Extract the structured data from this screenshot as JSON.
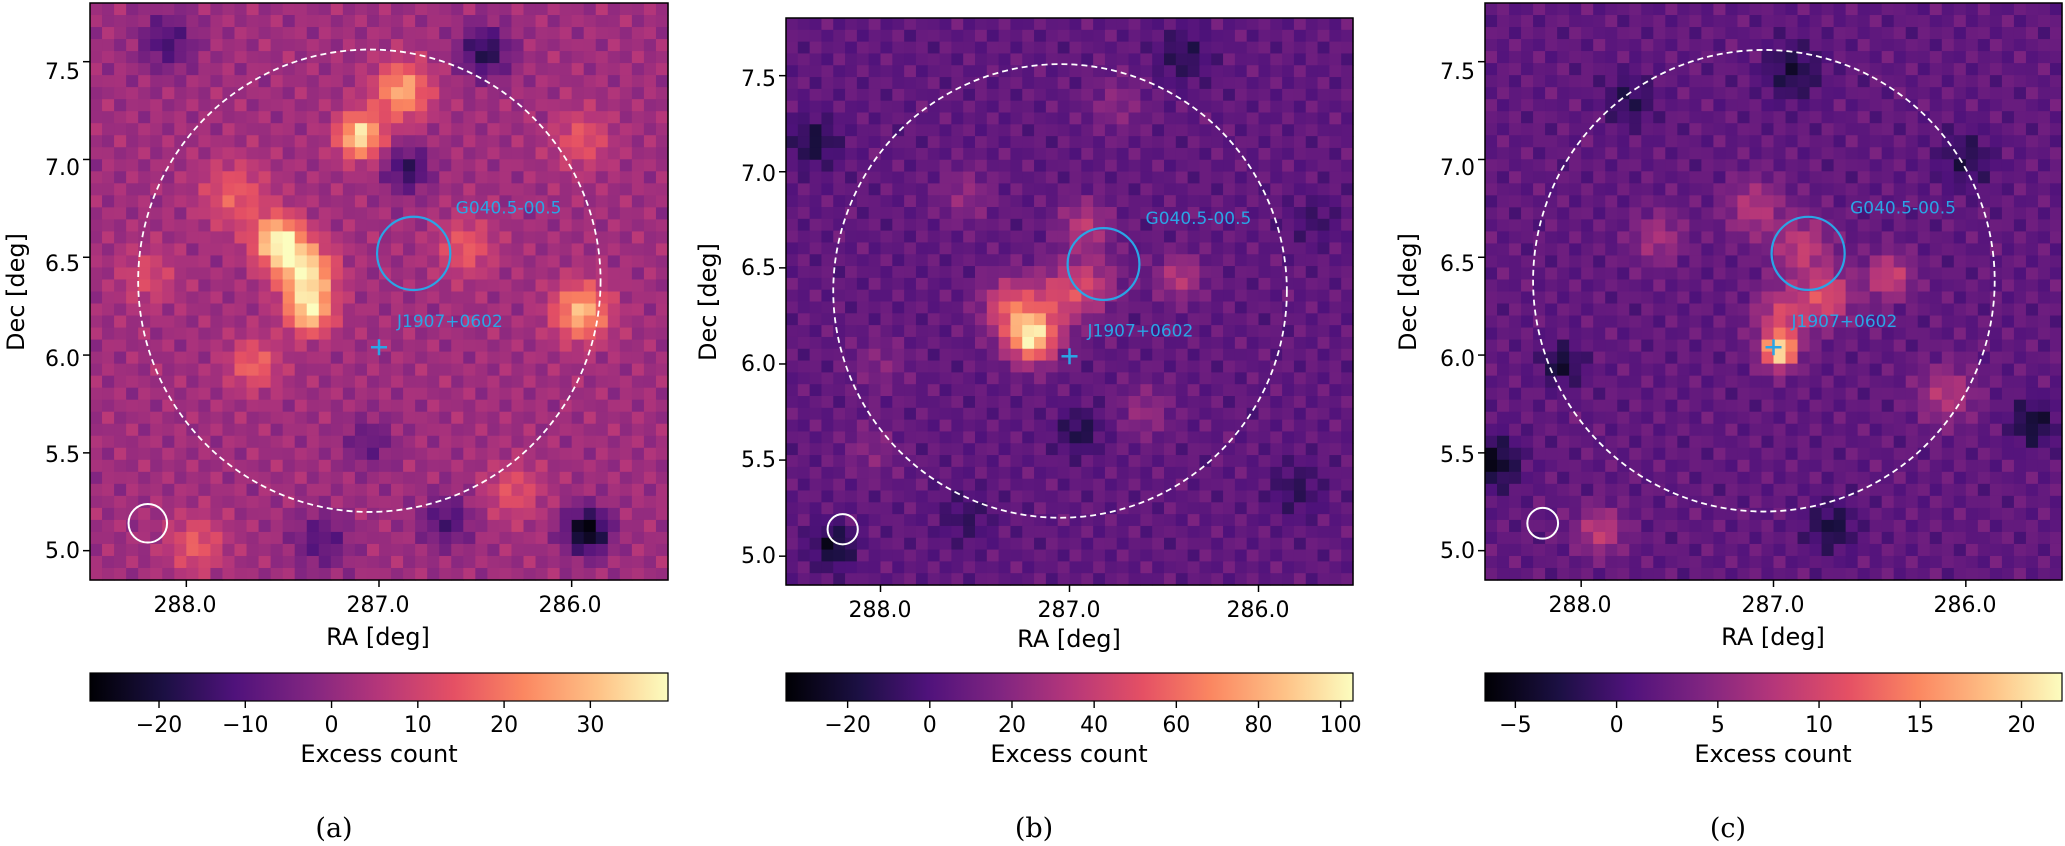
{
  "figure": {
    "panels": [
      {
        "id": "a",
        "caption": "(a)",
        "xlabel": "RA [deg]",
        "ylabel": "Dec [deg]",
        "xticks": [
          "288.0",
          "287.0",
          "286.0"
        ],
        "yticks": [
          "5.0",
          "5.5",
          "6.0",
          "6.5",
          "7.0",
          "7.5"
        ],
        "colorbar_label": "Excess count",
        "colorbar_ticks": [
          "−20",
          "−10",
          "0",
          "10",
          "20",
          "30"
        ],
        "source_labels": {
          "snr": "G040.5-00.5",
          "pulsar": "J1907+0602"
        }
      },
      {
        "id": "b",
        "caption": "(b)",
        "xlabel": "RA [deg]",
        "ylabel": "Dec [deg]",
        "xticks": [
          "288.0",
          "287.0",
          "286.0"
        ],
        "yticks": [
          "5.0",
          "5.5",
          "6.0",
          "6.5",
          "7.0",
          "7.5"
        ],
        "colorbar_label": "Excess count",
        "colorbar_ticks": [
          "−20",
          "0",
          "20",
          "40",
          "60",
          "80",
          "100"
        ],
        "source_labels": {
          "snr": "G040.5-00.5",
          "pulsar": "J1907+0602"
        }
      },
      {
        "id": "c",
        "caption": "(c)",
        "xlabel": "RA [deg]",
        "ylabel": "Dec [deg]",
        "xticks": [
          "288.0",
          "287.0",
          "286.0"
        ],
        "yticks": [
          "5.0",
          "5.5",
          "6.0",
          "6.5",
          "7.0",
          "7.5"
        ],
        "colorbar_label": "Excess count",
        "colorbar_ticks": [
          "−5",
          "0",
          "5",
          "10",
          "15",
          "20"
        ],
        "source_labels": {
          "snr": "G040.5-00.5",
          "pulsar": "J1907+0602"
        }
      }
    ]
  },
  "chart_data": [
    {
      "type": "heatmap",
      "colormap": "magma",
      "xlabel": "RA [deg]",
      "ylabel": "Dec [deg]",
      "xlim": [
        288.5,
        285.5
      ],
      "ylim": [
        4.85,
        7.8
      ],
      "xticks": [
        288.0,
        287.0,
        286.0
      ],
      "yticks": [
        5.0,
        5.5,
        6.0,
        6.5,
        7.0,
        7.5
      ],
      "colorbar": {
        "label": "Excess count",
        "min": -28,
        "max": 39,
        "ticks": [
          -20,
          -10,
          0,
          10,
          20,
          30
        ]
      },
      "background_level": 2,
      "blobs": [
        {
          "ra": 287.52,
          "dec": 6.58,
          "sigma": 0.09,
          "amp": 36
        },
        {
          "ra": 287.38,
          "dec": 6.42,
          "sigma": 0.1,
          "amp": 34
        },
        {
          "ra": 287.36,
          "dec": 6.22,
          "sigma": 0.08,
          "amp": 32
        },
        {
          "ra": 287.1,
          "dec": 7.12,
          "sigma": 0.08,
          "amp": 34
        },
        {
          "ra": 286.88,
          "dec": 7.35,
          "sigma": 0.1,
          "amp": 26
        },
        {
          "ra": 285.95,
          "dec": 6.22,
          "sigma": 0.1,
          "amp": 28
        },
        {
          "ra": 287.75,
          "dec": 6.82,
          "sigma": 0.12,
          "amp": 14
        },
        {
          "ra": 287.65,
          "dec": 5.95,
          "sigma": 0.09,
          "amp": 16
        },
        {
          "ra": 287.95,
          "dec": 5.03,
          "sigma": 0.1,
          "amp": 14
        },
        {
          "ra": 286.55,
          "dec": 6.55,
          "sigma": 0.1,
          "amp": 14
        },
        {
          "ra": 286.3,
          "dec": 5.3,
          "sigma": 0.1,
          "amp": 12
        },
        {
          "ra": 285.95,
          "dec": 7.1,
          "sigma": 0.1,
          "amp": 13
        },
        {
          "ra": 288.2,
          "dec": 6.4,
          "sigma": 0.1,
          "amp": 10
        },
        {
          "ra": 286.45,
          "dec": 7.55,
          "sigma": 0.09,
          "amp": -20
        },
        {
          "ra": 285.92,
          "dec": 5.1,
          "sigma": 0.08,
          "amp": -30
        },
        {
          "ra": 286.85,
          "dec": 6.95,
          "sigma": 0.08,
          "amp": -18
        },
        {
          "ra": 286.65,
          "dec": 5.15,
          "sigma": 0.09,
          "amp": -14
        },
        {
          "ra": 287.3,
          "dec": 5.05,
          "sigma": 0.1,
          "amp": -12
        },
        {
          "ra": 288.1,
          "dec": 7.6,
          "sigma": 0.1,
          "amp": -14
        },
        {
          "ra": 287.05,
          "dec": 5.55,
          "sigma": 0.09,
          "amp": -10
        }
      ],
      "roi_circle": {
        "ra": 287.05,
        "dec": 6.38,
        "radius_deg": 1.2,
        "style": "dashed",
        "color": "#ffffff"
      },
      "sources": [
        {
          "label": "G040.5-00.5",
          "marker": "circle",
          "ra": 286.82,
          "dec": 6.52,
          "radius_deg": 0.19,
          "color": "#2aa5e6"
        },
        {
          "label": "J1907+0602",
          "marker": "plus",
          "ra": 287.0,
          "dec": 6.04,
          "color": "#2aa5e6"
        }
      ],
      "psf_circle": {
        "ra": 288.2,
        "dec": 5.14,
        "radius_deg": 0.1,
        "color": "#ffffff"
      }
    },
    {
      "type": "heatmap",
      "colormap": "magma",
      "xlabel": "RA [deg]",
      "ylabel": "Dec [deg]",
      "xlim": [
        288.5,
        285.5
      ],
      "ylim": [
        4.85,
        7.8
      ],
      "xticks": [
        288.0,
        287.0,
        286.0
      ],
      "yticks": [
        5.0,
        5.5,
        6.0,
        6.5,
        7.0,
        7.5
      ],
      "colorbar": {
        "label": "Excess count",
        "min": -35,
        "max": 103,
        "ticks": [
          -20,
          0,
          20,
          40,
          60,
          80,
          100
        ]
      },
      "background_level": 6,
      "blobs": [
        {
          "ra": 287.2,
          "dec": 6.14,
          "sigma": 0.09,
          "amp": 90
        },
        {
          "ra": 287.32,
          "dec": 6.3,
          "sigma": 0.1,
          "amp": 45
        },
        {
          "ra": 287.05,
          "dec": 6.35,
          "sigma": 0.11,
          "amp": 35
        },
        {
          "ra": 286.92,
          "dec": 6.72,
          "sigma": 0.09,
          "amp": 30
        },
        {
          "ra": 286.88,
          "dec": 6.42,
          "sigma": 0.1,
          "amp": 26
        },
        {
          "ra": 286.42,
          "dec": 6.45,
          "sigma": 0.08,
          "amp": 30
        },
        {
          "ra": 287.55,
          "dec": 6.88,
          "sigma": 0.1,
          "amp": 16
        },
        {
          "ra": 286.6,
          "dec": 5.75,
          "sigma": 0.09,
          "amp": 18
        },
        {
          "ra": 288.05,
          "dec": 5.55,
          "sigma": 0.1,
          "amp": 12
        },
        {
          "ra": 286.75,
          "dec": 7.35,
          "sigma": 0.1,
          "amp": 14
        },
        {
          "ra": 288.0,
          "dec": 6.0,
          "sigma": 0.1,
          "amp": 12
        },
        {
          "ra": 288.35,
          "dec": 7.15,
          "sigma": 0.09,
          "amp": -24
        },
        {
          "ra": 288.25,
          "dec": 5.05,
          "sigma": 0.08,
          "amp": -30
        },
        {
          "ra": 286.95,
          "dec": 5.65,
          "sigma": 0.08,
          "amp": -22
        },
        {
          "ra": 286.4,
          "dec": 7.6,
          "sigma": 0.1,
          "amp": -18
        },
        {
          "ra": 287.55,
          "dec": 5.2,
          "sigma": 0.1,
          "amp": -14
        },
        {
          "ra": 285.8,
          "dec": 5.35,
          "sigma": 0.1,
          "amp": -16
        },
        {
          "ra": 285.7,
          "dec": 6.75,
          "sigma": 0.09,
          "amp": -12
        }
      ],
      "roi_circle": {
        "ra": 287.05,
        "dec": 6.38,
        "radius_deg": 1.2,
        "style": "dashed",
        "color": "#ffffff"
      },
      "sources": [
        {
          "label": "G040.5-00.5",
          "marker": "circle",
          "ra": 286.82,
          "dec": 6.52,
          "radius_deg": 0.19,
          "color": "#2aa5e6"
        },
        {
          "label": "J1907+0602",
          "marker": "plus",
          "ra": 287.0,
          "dec": 6.04,
          "color": "#2aa5e6"
        }
      ],
      "psf_circle": {
        "ra": 288.2,
        "dec": 5.14,
        "radius_deg": 0.08,
        "color": "#ffffff"
      }
    },
    {
      "type": "heatmap",
      "colormap": "magma",
      "xlabel": "RA [deg]",
      "ylabel": "Dec [deg]",
      "xlim": [
        288.5,
        285.5
      ],
      "ylim": [
        4.85,
        7.8
      ],
      "xticks": [
        288.0,
        287.0,
        286.0
      ],
      "yticks": [
        5.0,
        5.5,
        6.0,
        6.5,
        7.0,
        7.5
      ],
      "colorbar": {
        "label": "Excess count",
        "min": -6.5,
        "max": 22,
        "ticks": [
          -5,
          0,
          5,
          10,
          15,
          20
        ]
      },
      "background_level": 2,
      "blobs": [
        {
          "ra": 286.97,
          "dec": 6.02,
          "sigma": 0.06,
          "amp": 19
        },
        {
          "ra": 286.95,
          "dec": 6.2,
          "sigma": 0.1,
          "amp": 8
        },
        {
          "ra": 286.72,
          "dec": 6.3,
          "sigma": 0.09,
          "amp": 9
        },
        {
          "ra": 286.85,
          "dec": 6.55,
          "sigma": 0.1,
          "amp": 7
        },
        {
          "ra": 286.4,
          "dec": 6.4,
          "sigma": 0.08,
          "amp": 8
        },
        {
          "ra": 287.1,
          "dec": 6.75,
          "sigma": 0.1,
          "amp": 6
        },
        {
          "ra": 287.6,
          "dec": 6.6,
          "sigma": 0.09,
          "amp": 5
        },
        {
          "ra": 287.9,
          "dec": 5.1,
          "sigma": 0.08,
          "amp": 7
        },
        {
          "ra": 286.1,
          "dec": 5.8,
          "sigma": 0.1,
          "amp": 6
        },
        {
          "ra": 288.45,
          "dec": 5.45,
          "sigma": 0.09,
          "amp": -7
        },
        {
          "ra": 288.1,
          "dec": 5.95,
          "sigma": 0.07,
          "amp": -6
        },
        {
          "ra": 286.7,
          "dec": 5.12,
          "sigma": 0.09,
          "amp": -5
        },
        {
          "ra": 285.65,
          "dec": 5.65,
          "sigma": 0.08,
          "amp": -6
        },
        {
          "ra": 286.9,
          "dec": 7.45,
          "sigma": 0.1,
          "amp": -5
        },
        {
          "ra": 287.75,
          "dec": 7.3,
          "sigma": 0.09,
          "amp": -4
        },
        {
          "ra": 286.0,
          "dec": 7.0,
          "sigma": 0.1,
          "amp": -4
        }
      ],
      "roi_circle": {
        "ra": 287.05,
        "dec": 6.38,
        "radius_deg": 1.2,
        "style": "dashed",
        "color": "#ffffff"
      },
      "sources": [
        {
          "label": "G040.5-00.5",
          "marker": "circle",
          "ra": 286.82,
          "dec": 6.52,
          "radius_deg": 0.19,
          "color": "#2aa5e6"
        },
        {
          "label": "J1907+0602",
          "marker": "plus",
          "ra": 287.0,
          "dec": 6.04,
          "color": "#2aa5e6"
        }
      ],
      "psf_circle": {
        "ra": 288.2,
        "dec": 5.14,
        "radius_deg": 0.08,
        "color": "#ffffff"
      }
    }
  ]
}
